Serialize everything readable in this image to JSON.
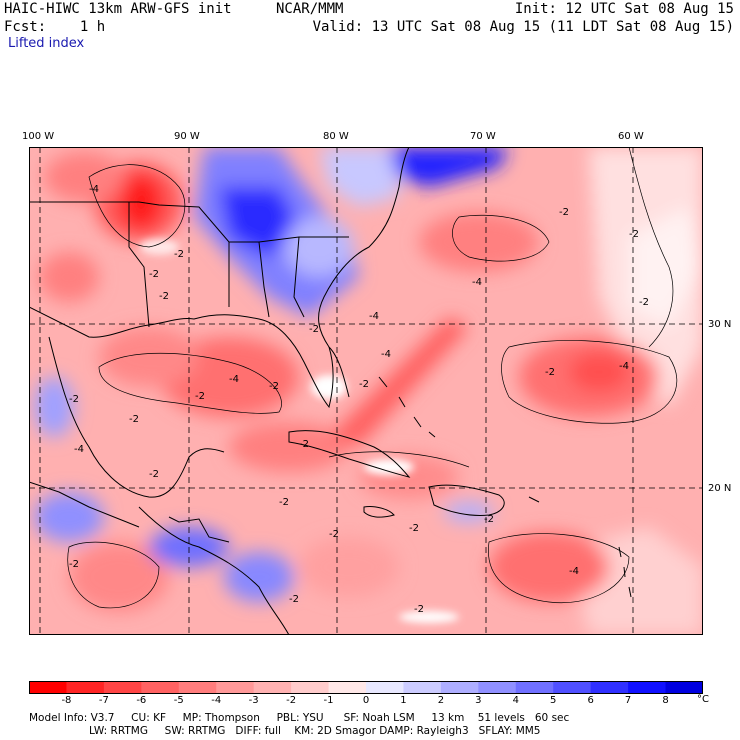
{
  "header": {
    "model": "HAIC-HIWC 13km ARW-GFS init",
    "org": "NCAR/MMM",
    "init": "Init: 12 UTC Sat 08 Aug 15",
    "fcst": "Fcst:    1 h",
    "valid": "Valid: 13 UTC Sat 08 Aug 15 (11 LDT Sat 08 Aug 15)",
    "field": "Lifted index"
  },
  "map": {
    "lon_labels": [
      "100 W",
      "90 W",
      "80 W",
      "70 W",
      "60 W"
    ],
    "lat_labels": [
      "30 N",
      "20 N"
    ],
    "contour_labels": [
      "-4",
      "-2",
      "-2",
      "-2",
      "-2",
      "-4",
      "-2",
      "-4",
      "-2",
      "-2",
      "-4",
      "-2",
      "-2",
      "-2",
      "-2",
      "-2",
      "-4",
      "-4",
      "-2",
      "-2",
      "-2",
      "-2",
      "-4",
      "-2",
      "-2",
      "-2",
      "-2",
      "-2",
      "-4",
      "-2"
    ],
    "colors": {
      "deep_red": "#ff1a1a",
      "red": "#ff5c5c",
      "salmon": "#ff9090",
      "pink": "#ffc0c0",
      "light_blue": "#c8c8ff",
      "blue": "#7070ff",
      "deep_blue": "#1a1aff"
    }
  },
  "colorbar": {
    "ticks": [
      "-8",
      "-7",
      "-6",
      "-5",
      "-4",
      "-3",
      "-2",
      "-1",
      "0",
      "1",
      "2",
      "3",
      "4",
      "5",
      "6",
      "7",
      "8"
    ],
    "unit": "°C",
    "colors": [
      "#ff0000",
      "#ff2525",
      "#ff4545",
      "#ff6262",
      "#ff7d7d",
      "#ff9999",
      "#ffb2b2",
      "#ffcccc",
      "#ffe8e8",
      "#e8e8ff",
      "#ccccff",
      "#aeaeff",
      "#9090ff",
      "#7070ff",
      "#5050ff",
      "#3030ff",
      "#1010ff",
      "#0000e0"
    ]
  },
  "footer": {
    "line1": "Model Info: V3.7     CU: KF     MP: Thompson     PBL: YSU      SF: Noah LSM     13 km    51 levels   60 sec",
    "line2": "LW: RRTMG     SW: RRTMG   DIFF: full    KM: 2D Smagor DAMP: Rayleigh3   SFLAY: MM5"
  }
}
